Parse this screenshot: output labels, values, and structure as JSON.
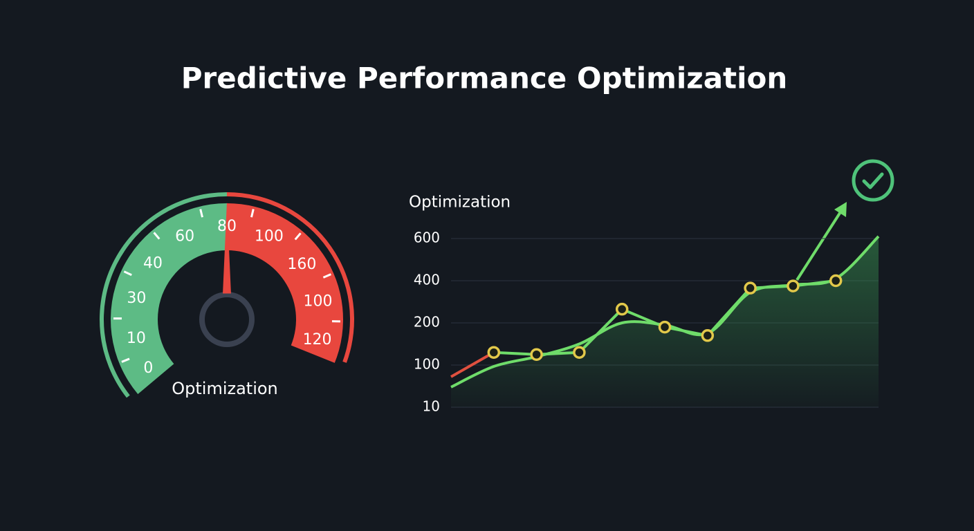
{
  "title": "Predictive Performance Optimization",
  "chart_data": [
    {
      "type": "gauge",
      "title": "Optimization",
      "value": 80,
      "tick_labels": [
        "0",
        "10",
        "30",
        "40",
        "60",
        "80",
        "100",
        "160",
        "100",
        "120"
      ],
      "low_color": "#5dbb85",
      "high_color": "#e8473e",
      "needle_color": "#e8473e"
    },
    {
      "type": "line",
      "title": "Optimization",
      "categories": [
        null,
        null,
        null,
        null,
        null,
        null,
        null,
        null,
        null,
        null,
        null
      ],
      "ylim": [
        10,
        600
      ],
      "yticks": [
        10,
        100,
        200,
        400,
        600
      ],
      "grid": true,
      "series": [
        {
          "color": "#e0503f",
          "values": [
            75,
            130,
            null,
            null,
            null,
            null,
            null,
            null,
            null,
            null,
            null
          ]
        },
        {
          "color": "#6fdc6a",
          "smooth": true,
          "area": true,
          "values": [
            53,
            97,
            120,
            150,
            200,
            195,
            175,
            345,
            380,
            410,
            610
          ]
        },
        {
          "color": "#e2c84a",
          "markers": true,
          "line_color": "#6fdc6a",
          "values": [
            null,
            130,
            125,
            130,
            265,
            190,
            170,
            365,
            375,
            400,
            null
          ]
        }
      ]
    }
  ]
}
